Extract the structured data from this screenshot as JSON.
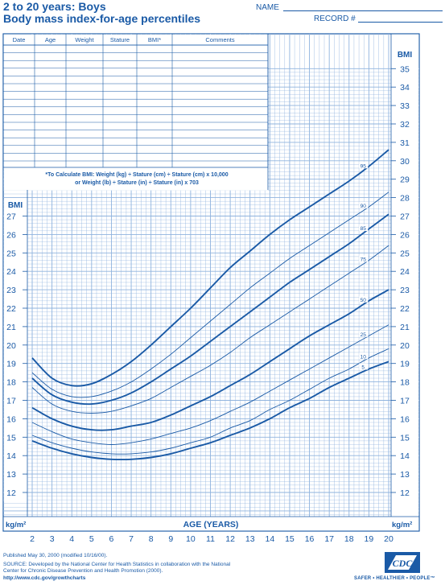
{
  "header": {
    "title_line1": "2 to 20 years: Boys",
    "title_line2": "Body mass index-for-age percentiles",
    "name_label": "NAME",
    "record_label": "RECORD #"
  },
  "record_table": {
    "columns": [
      "Date",
      "Age",
      "Weight",
      "Stature",
      "BMI*",
      "Comments"
    ],
    "formula_line1": "*To Calculate BMI: Weight (kg) ÷ Stature (cm) ÷ Stature (cm) x 10,000",
    "formula_line2": "or Weight (lb) ÷ Stature (in) ÷ Stature (in) x 703"
  },
  "axis_labels": {
    "bmi_right": "BMI",
    "bmi_left": "BMI",
    "unit_left": "kg/m²",
    "unit_right": "kg/m²",
    "x_title": "AGE (YEARS)"
  },
  "chart_data": {
    "type": "line",
    "xlabel": "AGE (YEARS)",
    "ylabel": "BMI",
    "xlim": [
      2,
      20
    ],
    "ylim": [
      12,
      35
    ],
    "x_ticks": [
      2,
      3,
      4,
      5,
      6,
      7,
      8,
      9,
      10,
      11,
      12,
      13,
      14,
      15,
      16,
      17,
      18,
      19,
      20
    ],
    "y_ticks_left": [
      12,
      13,
      14,
      15,
      16,
      17,
      18,
      19,
      20,
      21,
      22,
      23,
      24,
      25,
      26,
      27
    ],
    "y_ticks_right": [
      12,
      13,
      14,
      15,
      16,
      17,
      18,
      19,
      20,
      21,
      22,
      23,
      24,
      25,
      26,
      27,
      28,
      29,
      30,
      31,
      32,
      33,
      34,
      35
    ],
    "x": [
      2,
      3,
      4,
      5,
      6,
      7,
      8,
      9,
      10,
      11,
      12,
      13,
      14,
      15,
      16,
      17,
      18,
      19,
      20
    ],
    "series": [
      {
        "name": "95",
        "weight": "bold",
        "values": [
          19.3,
          18.2,
          17.8,
          17.9,
          18.4,
          19.1,
          20.0,
          21.0,
          22.0,
          23.1,
          24.2,
          25.1,
          26.0,
          26.8,
          27.5,
          28.2,
          28.9,
          29.7,
          30.6
        ]
      },
      {
        "name": "90",
        "weight": "thin",
        "values": [
          18.5,
          17.6,
          17.2,
          17.2,
          17.5,
          18.0,
          18.7,
          19.5,
          20.4,
          21.3,
          22.2,
          23.1,
          23.9,
          24.7,
          25.4,
          26.1,
          26.8,
          27.5,
          28.3
        ]
      },
      {
        "name": "85",
        "weight": "bold",
        "values": [
          18.2,
          17.3,
          16.9,
          16.8,
          17.0,
          17.4,
          18.0,
          18.7,
          19.4,
          20.2,
          21.0,
          21.8,
          22.6,
          23.4,
          24.1,
          24.8,
          25.5,
          26.3,
          27.1
        ]
      },
      {
        "name": "75",
        "weight": "thin",
        "values": [
          17.7,
          16.8,
          16.4,
          16.3,
          16.4,
          16.7,
          17.1,
          17.7,
          18.3,
          18.9,
          19.6,
          20.4,
          21.1,
          21.8,
          22.5,
          23.2,
          23.9,
          24.6,
          25.4
        ]
      },
      {
        "name": "50",
        "weight": "bold",
        "values": [
          16.6,
          16.0,
          15.6,
          15.4,
          15.4,
          15.6,
          15.8,
          16.2,
          16.7,
          17.2,
          17.8,
          18.4,
          19.1,
          19.8,
          20.5,
          21.1,
          21.7,
          22.4,
          23.0
        ]
      },
      {
        "name": "25",
        "weight": "thin",
        "values": [
          15.8,
          15.3,
          14.9,
          14.7,
          14.6,
          14.7,
          14.9,
          15.2,
          15.5,
          15.9,
          16.4,
          16.9,
          17.5,
          18.1,
          18.7,
          19.3,
          19.9,
          20.5,
          21.1
        ]
      },
      {
        "name": "10",
        "weight": "thin",
        "values": [
          15.1,
          14.7,
          14.4,
          14.2,
          14.1,
          14.1,
          14.2,
          14.4,
          14.7,
          15.0,
          15.5,
          15.9,
          16.5,
          17.0,
          17.6,
          18.2,
          18.7,
          19.3,
          19.8
        ]
      },
      {
        "name": "5",
        "weight": "bold",
        "values": [
          14.8,
          14.4,
          14.1,
          13.9,
          13.8,
          13.8,
          13.9,
          14.1,
          14.4,
          14.7,
          15.1,
          15.5,
          16.0,
          16.6,
          17.1,
          17.7,
          18.2,
          18.7,
          19.1
        ]
      }
    ],
    "grid": true,
    "legend": "inline labels at right"
  },
  "footer": {
    "published": "Published May 30, 2000 (modified 10/16/00).",
    "source": "SOURCE: Developed by the National Center for Health Statistics in collaboration with the National Center for Chronic Disease Prevention and Health Promotion (2000).",
    "url": "http://www.cdc.gov/growthcharts",
    "logo_text": "CDC",
    "tagline": "SAFER • HEALTHIER • PEOPLE™"
  },
  "colors": {
    "ink": "#1a5aa6",
    "grid": "#8fb3de"
  }
}
